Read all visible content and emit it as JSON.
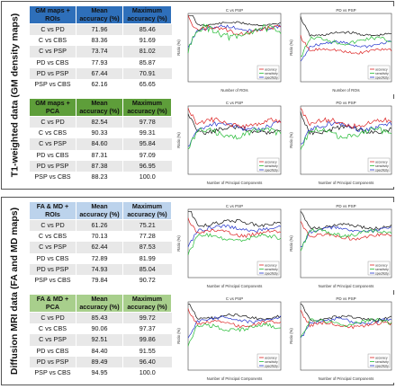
{
  "colors": {
    "gm_roi_header": "#2e6fba",
    "gm_pca_header": "#5e9e3a",
    "diff_roi_header": "#bcd3ec",
    "diff_pca_header": "#a8cf8c",
    "series_blue": "#2233cc",
    "series_red": "#dd2222",
    "series_green": "#22bb33",
    "series_black": "#111111"
  },
  "section_t1": {
    "side_label": "T1-weighted data (GM density maps)",
    "tables": [
      {
        "headers": [
          "GM maps + ROIs",
          "Mean accuracy (%)",
          "Maximum accuracy (%)"
        ],
        "rows": [
          [
            "C vs PD",
            "71.96",
            "85.46"
          ],
          [
            "C vs CBS",
            "83.36",
            "91.69"
          ],
          [
            "C vs PSP",
            "73.74",
            "81.02"
          ],
          [
            "PD vs CBS",
            "77.93",
            "85.87"
          ],
          [
            "PD vs PSP",
            "67.44",
            "70.91"
          ],
          [
            "PSP vs CBS",
            "62.16",
            "65.65"
          ]
        ]
      },
      {
        "headers": [
          "GM maps + PCA",
          "Mean accuracy (%)",
          "Maximum accuracy (%)"
        ],
        "rows": [
          [
            "C vs PD",
            "82.54",
            "97.78"
          ],
          [
            "C vs CBS",
            "90.33",
            "99.31"
          ],
          [
            "C vs PSP",
            "84.60",
            "95.84"
          ],
          [
            "PD vs CBS",
            "87.31",
            "97.09"
          ],
          [
            "PD vs PSP",
            "87.38",
            "96.95"
          ],
          [
            "PSP vs CBS",
            "88.23",
            "100.0"
          ]
        ]
      }
    ]
  },
  "section_diff": {
    "side_label": "Diffusion MRI data (FA and MD maps)",
    "tables": [
      {
        "headers": [
          "FA & MD + ROIs",
          "Mean accuracy (%)",
          "Maximum accuracy (%)"
        ],
        "rows": [
          [
            "C vs PD",
            "61.26",
            "75.21"
          ],
          [
            "C vs CBS",
            "70.13",
            "77.28"
          ],
          [
            "C vs PSP",
            "62.44",
            "87.53"
          ],
          [
            "PD vs CBS",
            "72.89",
            "81.99"
          ],
          [
            "PD vs PSP",
            "74.93",
            "85.04"
          ],
          [
            "PSP vs CBS",
            "79.84",
            "90.72"
          ]
        ]
      },
      {
        "headers": [
          "FA & MD + PCA",
          "Mean accuracy (%)",
          "Maximum accuracy (%)"
        ],
        "rows": [
          [
            "C vs PD",
            "85.43",
            "99.72"
          ],
          [
            "C vs CBS",
            "90.06",
            "97.37"
          ],
          [
            "C vs PSP",
            "92.51",
            "99.86"
          ],
          [
            "PD vs CBS",
            "84.40",
            "91.55"
          ],
          [
            "PD vs PSP",
            "89.49",
            "96.40"
          ],
          [
            "PSP vs CBS",
            "94.95",
            "100.0"
          ]
        ]
      }
    ]
  },
  "plots": {
    "t1_roi_left": {
      "title": "C vs PSP",
      "xlabel": "Number of ROIs",
      "ylabel": "Ratio (%)",
      "legend": [
        "accuracy",
        "sensitivity",
        "specificity"
      ]
    },
    "t1_roi_right": {
      "title": "PD vs PSP",
      "xlabel": "Number of ROIs",
      "ylabel": "Ratio (%)",
      "legend": [
        "accuracy",
        "sensitivity",
        "specificity"
      ]
    },
    "t1_pca_left": {
      "title": "C vs PSP",
      "xlabel": "Number of Principal Components",
      "ylabel": "Ratio (%)",
      "legend": [
        "accuracy",
        "sensitivity",
        "specificity"
      ]
    },
    "t1_pca_right": {
      "title": "PD vs PSP",
      "xlabel": "Number of Principal Components",
      "ylabel": "Ratio (%)",
      "legend": [
        "accuracy",
        "sensitivity",
        "specificity"
      ]
    },
    "diff_roi_left": {
      "title": "C vs PSP",
      "xlabel": "Number of Principal Components",
      "ylabel": "Ratio (%)",
      "legend": [
        "accuracy",
        "sensitivity",
        "specificity"
      ]
    },
    "diff_roi_right": {
      "title": "PD vs PSP",
      "xlabel": "Number of Principal Components",
      "ylabel": "Ratio (%)",
      "legend": [
        "accuracy",
        "sensitivity",
        "specificity"
      ]
    },
    "diff_pca_left": {
      "title": "C vs PSP",
      "xlabel": "Number of Principal Components",
      "ylabel": "Ratio (%)",
      "legend": [
        "accuracy",
        "sensitivity",
        "specificity"
      ]
    },
    "diff_pca_right": {
      "title": "PD vs PSP",
      "xlabel": "Number of Principal Components",
      "ylabel": "Ratio (%)",
      "legend": [
        "accuracy",
        "sensitivity",
        "specificity"
      ]
    }
  }
}
